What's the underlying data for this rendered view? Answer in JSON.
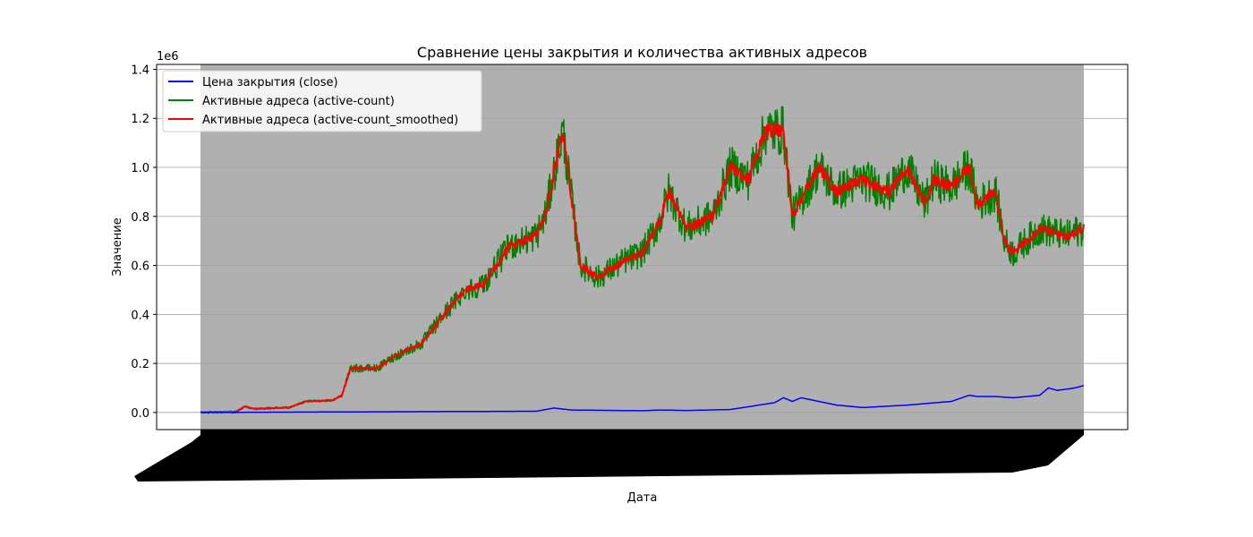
{
  "chart_data": {
    "type": "line",
    "title": "Сравнение цены закрытия и количества активных адресов",
    "xlabel": "Дата",
    "ylabel": "Значение",
    "y_scale_label": "1e6",
    "ylim": [
      -0.07,
      1.42
    ],
    "yticks": [
      0.0,
      0.2,
      0.4,
      0.6,
      0.8,
      1.0,
      1.2,
      1.4
    ],
    "ytick_labels": [
      "0.0",
      "0.2",
      "0.4",
      "0.6",
      "0.8",
      "1.0",
      "1.2",
      "1.4"
    ],
    "grid": "horizontal",
    "legend_position": "top-left",
    "plot_background": "#b0b0b0",
    "x_note": "dense unreadable date tick labels",
    "series": [
      {
        "name": "Цена закрытия (close)",
        "color": "#0000ff",
        "t": [
          0.0,
          0.38,
          0.4,
          0.42,
          0.5,
          0.52,
          0.55,
          0.6,
          0.65,
          0.66,
          0.67,
          0.68,
          0.7,
          0.72,
          0.75,
          0.8,
          0.85,
          0.87,
          0.88,
          0.9,
          0.92,
          0.95,
          0.96,
          0.97,
          0.99,
          1.0
        ],
        "values": [
          0.0,
          0.005,
          0.018,
          0.01,
          0.007,
          0.01,
          0.008,
          0.012,
          0.04,
          0.06,
          0.045,
          0.06,
          0.045,
          0.03,
          0.02,
          0.03,
          0.045,
          0.07,
          0.065,
          0.065,
          0.06,
          0.07,
          0.1,
          0.09,
          0.1,
          0.11
        ]
      },
      {
        "name": "Активные адреса (active-count)",
        "color": "#008000",
        "t": [
          0.0,
          0.04,
          0.05,
          0.06,
          0.1,
          0.12,
          0.15,
          0.16,
          0.17,
          0.2,
          0.22,
          0.25,
          0.28,
          0.3,
          0.32,
          0.35,
          0.38,
          0.39,
          0.41,
          0.43,
          0.45,
          0.48,
          0.5,
          0.52,
          0.53,
          0.55,
          0.58,
          0.6,
          0.62,
          0.64,
          0.66,
          0.67,
          0.7,
          0.72,
          0.75,
          0.78,
          0.8,
          0.82,
          0.83,
          0.85,
          0.87,
          0.88,
          0.9,
          0.91,
          0.92,
          0.95,
          0.98,
          1.0
        ],
        "values": [
          0.0,
          0.002,
          0.025,
          0.015,
          0.02,
          0.045,
          0.05,
          0.07,
          0.18,
          0.18,
          0.23,
          0.28,
          0.42,
          0.5,
          0.52,
          0.68,
          0.72,
          0.8,
          1.15,
          0.6,
          0.55,
          0.62,
          0.65,
          0.78,
          0.9,
          0.75,
          0.8,
          1.0,
          0.95,
          1.15,
          1.15,
          0.8,
          1.0,
          0.9,
          0.95,
          0.9,
          1.0,
          0.85,
          0.95,
          0.92,
          1.0,
          0.85,
          0.9,
          0.7,
          0.65,
          0.75,
          0.72,
          0.75
        ],
        "noise": 0.09
      },
      {
        "name": "Активные адреса (active-count_smoothed)",
        "color": "#ff0000",
        "t": [
          0.0,
          0.04,
          0.05,
          0.06,
          0.1,
          0.12,
          0.15,
          0.16,
          0.17,
          0.2,
          0.22,
          0.25,
          0.28,
          0.3,
          0.32,
          0.35,
          0.38,
          0.39,
          0.41,
          0.43,
          0.45,
          0.48,
          0.5,
          0.52,
          0.53,
          0.55,
          0.58,
          0.6,
          0.62,
          0.64,
          0.66,
          0.67,
          0.7,
          0.72,
          0.75,
          0.78,
          0.8,
          0.82,
          0.83,
          0.85,
          0.87,
          0.88,
          0.9,
          0.91,
          0.92,
          0.95,
          0.98,
          1.0
        ],
        "values": [
          0.0,
          0.002,
          0.025,
          0.015,
          0.02,
          0.045,
          0.05,
          0.07,
          0.18,
          0.18,
          0.23,
          0.28,
          0.42,
          0.5,
          0.52,
          0.68,
          0.72,
          0.8,
          1.15,
          0.6,
          0.55,
          0.62,
          0.65,
          0.78,
          0.9,
          0.75,
          0.8,
          1.0,
          0.95,
          1.15,
          1.15,
          0.8,
          1.0,
          0.9,
          0.95,
          0.9,
          1.0,
          0.85,
          0.95,
          0.92,
          1.0,
          0.85,
          0.9,
          0.7,
          0.65,
          0.75,
          0.72,
          0.75
        ],
        "noise": 0.025
      }
    ]
  }
}
